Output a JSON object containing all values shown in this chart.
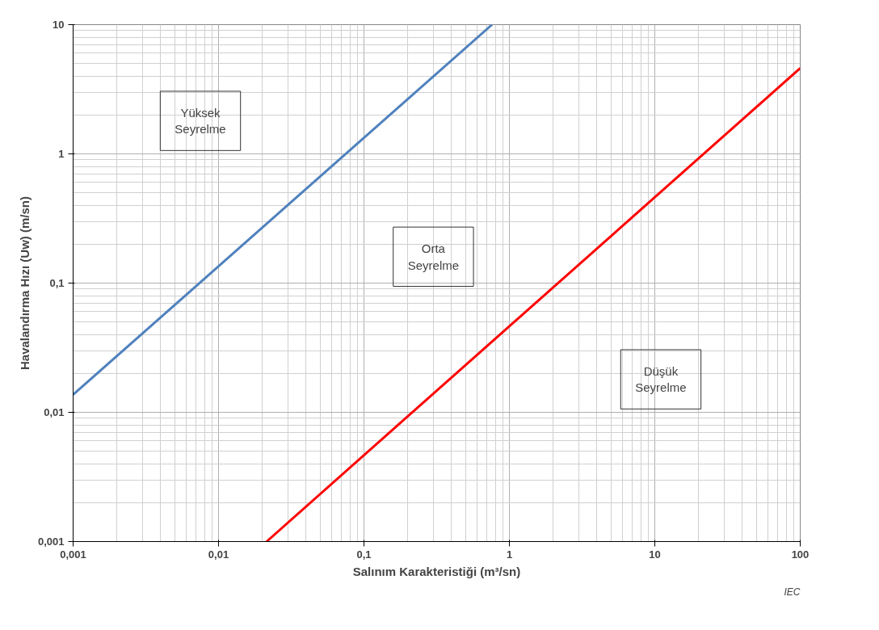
{
  "chart_data": {
    "type": "line",
    "xlabel": "Salınım Karakteristiği (m³/sn)",
    "ylabel": "Havalandırma Hızı (Uw) (m/sn)",
    "log": "xy",
    "grid": true,
    "marker": "none",
    "line_style": "solid",
    "xlim": [
      0.001,
      100
    ],
    "ylim": [
      0.001,
      10
    ],
    "xticks": [
      {
        "value": 0.001,
        "label": "0,001"
      },
      {
        "value": 0.01,
        "label": "0,01"
      },
      {
        "value": 0.1,
        "label": "0,1"
      },
      1,
      10,
      100
    ],
    "yticks": [
      {
        "value": 0.001,
        "label": "0,001"
      },
      {
        "value": 0.01,
        "label": "0,01"
      },
      {
        "value": 0.1,
        "label": "0,1"
      },
      1,
      10
    ],
    "series": [
      {
        "color": "#4f81bd",
        "x": [
          0.001,
          0.76
        ],
        "values": [
          0.0137,
          10
        ]
      },
      {
        "color": "#ff0000",
        "x": [
          0.0214,
          100
        ],
        "values": [
          0.001,
          4.6
        ]
      }
    ],
    "annotations": [
      "Yüksek\nSeyrelme",
      "Orta\nSeyrelme",
      "Düşük\nSeyrelme",
      "IEC"
    ]
  }
}
